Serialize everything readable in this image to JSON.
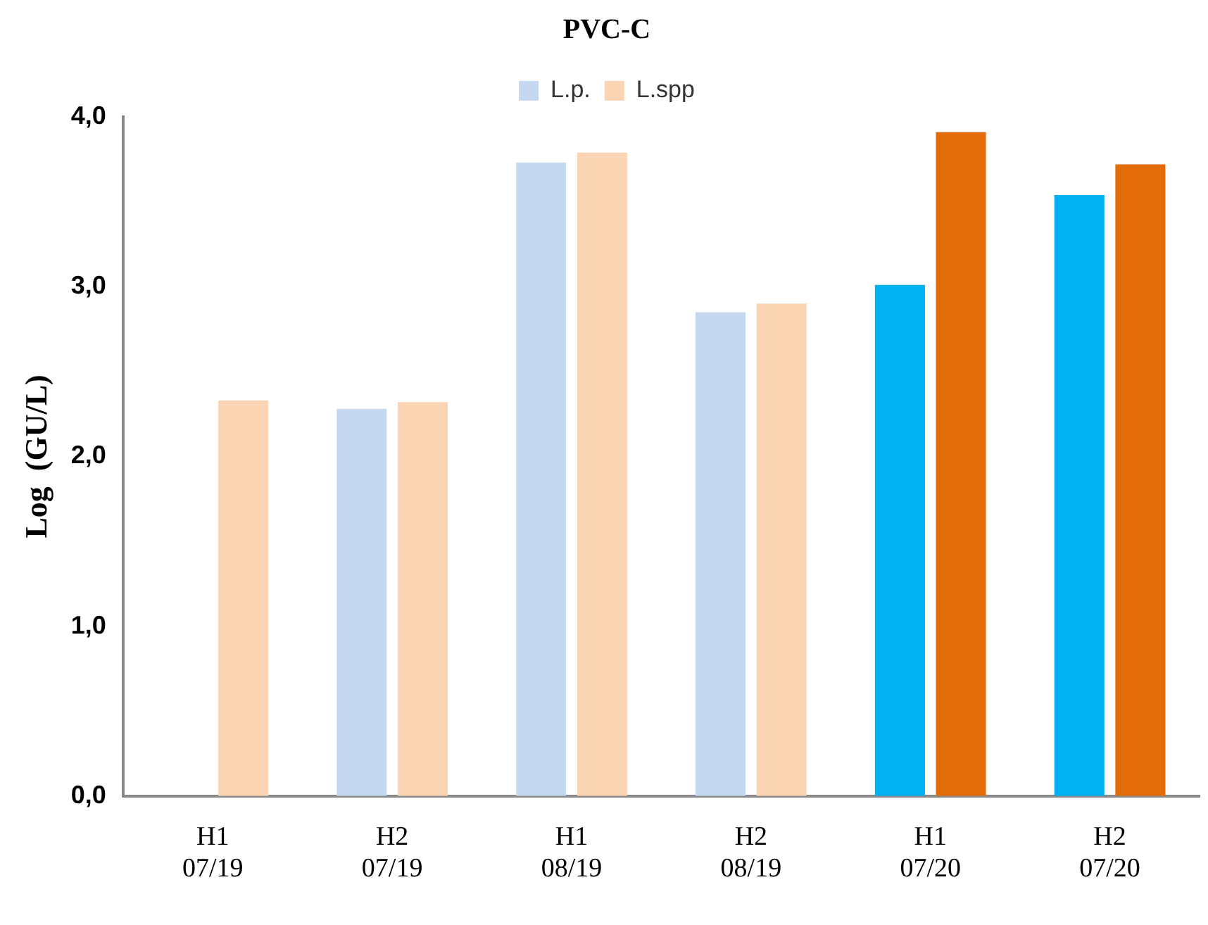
{
  "chart_data": {
    "type": "bar",
    "title": "PVC-C",
    "ylabel": "Log  (GU/L)",
    "categories": [
      "H1 07/19",
      "H2 07/19",
      "H1 08/19",
      "H2 08/19",
      "H1 07/20",
      "H2 07/20"
    ],
    "series": [
      {
        "name": "L.p.",
        "color": "#c6d8ef",
        "colors": [
          "#c6d8ef",
          "#c6d8ef",
          "#c6d8ef",
          "#c6d8ef",
          "#00b0f0",
          "#00b0f0"
        ],
        "values": [
          null,
          2.28,
          3.73,
          2.85,
          3.01,
          3.54
        ]
      },
      {
        "name": "L.spp",
        "color": "#fbd4b4",
        "colors": [
          "#fbd4b4",
          "#fbd4b4",
          "#fbd4b4",
          "#fbd4b4",
          "#e26b0a",
          "#e26b0a"
        ],
        "values": [
          2.33,
          2.32,
          3.79,
          2.9,
          3.91,
          3.72
        ]
      }
    ],
    "ylim": [
      0,
      4
    ],
    "yticks": [
      {
        "value": 0,
        "label": "0,0"
      },
      {
        "value": 1,
        "label": "1,0"
      },
      {
        "value": 2,
        "label": "2,0"
      },
      {
        "value": 3,
        "label": "3,0"
      },
      {
        "value": 4,
        "label": "4,0"
      }
    ],
    "grid": false,
    "legend": "top"
  }
}
